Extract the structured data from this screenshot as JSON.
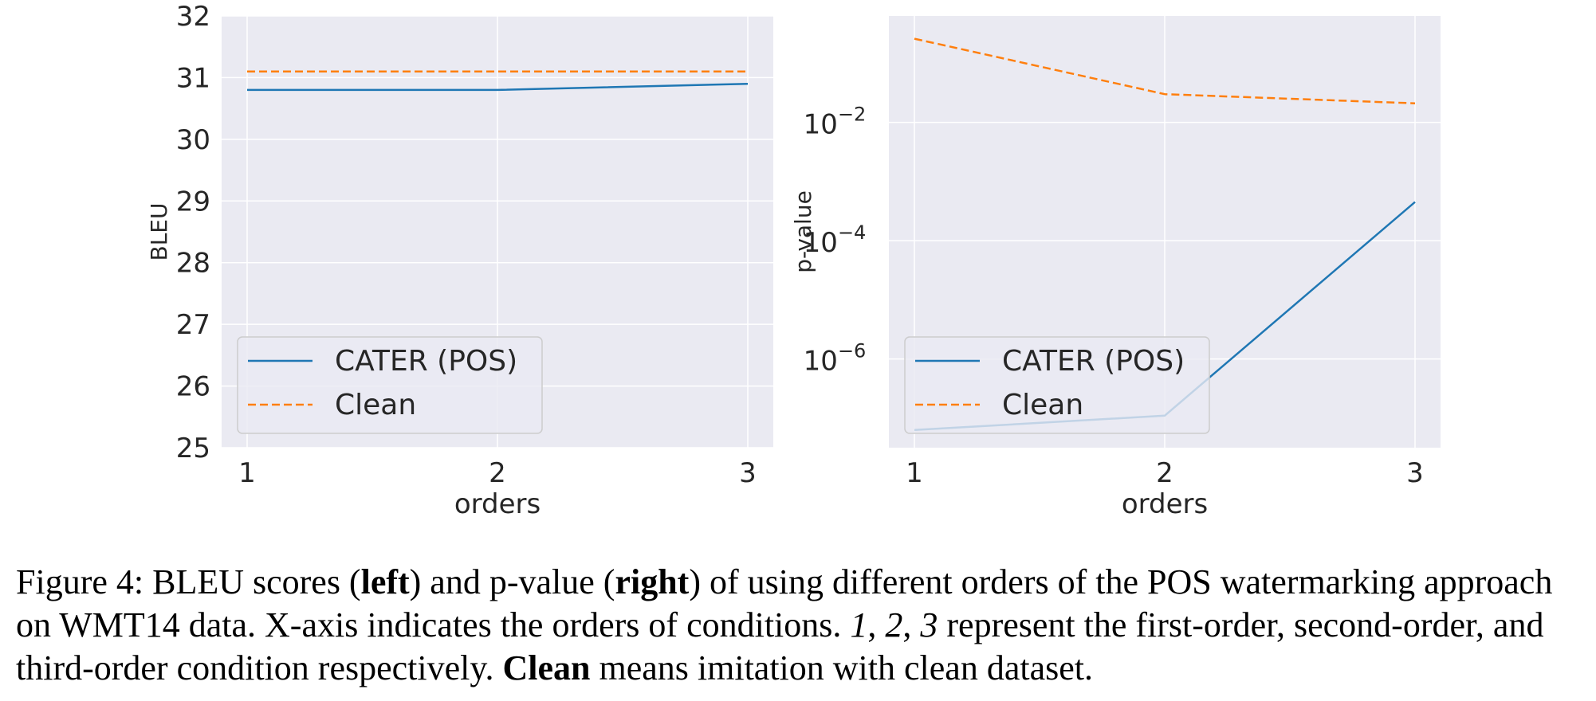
{
  "colors": {
    "plot_bg": "#eaeaf2",
    "grid": "#ffffff",
    "cater": "#1f77b4",
    "clean": "#ff7f0e",
    "text": "#262626"
  },
  "chart_data": [
    {
      "type": "line",
      "panel": "left",
      "xlabel": "orders",
      "ylabel": "BLEU",
      "x": [
        1,
        2,
        3
      ],
      "xticks": [
        "1",
        "2",
        "3"
      ],
      "ylim": [
        25,
        32
      ],
      "yticks": [
        "25",
        "26",
        "27",
        "28",
        "29",
        "30",
        "31",
        "32"
      ],
      "yscale": "linear",
      "legend_position": "lower-left",
      "series": [
        {
          "name": "CATER (POS)",
          "style": "solid",
          "color": "#1f77b4",
          "values": [
            30.8,
            30.8,
            30.9
          ]
        },
        {
          "name": "Clean",
          "style": "dashed",
          "color": "#ff7f0e",
          "values": [
            31.1,
            31.1,
            31.1
          ]
        }
      ]
    },
    {
      "type": "line",
      "panel": "right",
      "xlabel": "orders",
      "ylabel": "p-value",
      "x": [
        1,
        2,
        3
      ],
      "xticks": [
        "1",
        "2",
        "3"
      ],
      "yscale": "log",
      "ylim_log10": [
        -7.5,
        -0.2
      ],
      "yticks": [
        {
          "base": "10",
          "exp": "−2",
          "log10": -2
        },
        {
          "base": "10",
          "exp": "−4",
          "log10": -4
        },
        {
          "base": "10",
          "exp": "−6",
          "log10": -6
        }
      ],
      "legend_position": "lower-left",
      "series": [
        {
          "name": "CATER (POS)",
          "style": "solid",
          "color": "#1f77b4",
          "values": [
            6.3e-08,
            1.1e-07,
            0.00045
          ]
        },
        {
          "name": "Clean",
          "style": "dashed",
          "color": "#ff7f0e",
          "values": [
            0.26,
            0.03,
            0.021
          ]
        }
      ]
    }
  ],
  "caption": {
    "p1": "Figure 4: BLEU scores (",
    "b1": "left",
    "p2": ") and p-value (",
    "b2": "right",
    "p3": ") of using different orders of the POS watermarking approach on WMT14 data. X-axis indicates the orders of conditions. ",
    "i1": "1",
    "p4": ", ",
    "i2": "2",
    "p5": ", ",
    "i3": "3",
    "p6": " represent the first-order, second-order, and third-order condition respectively. ",
    "b3": "Clean",
    "p7": " means imitation with clean dataset."
  }
}
